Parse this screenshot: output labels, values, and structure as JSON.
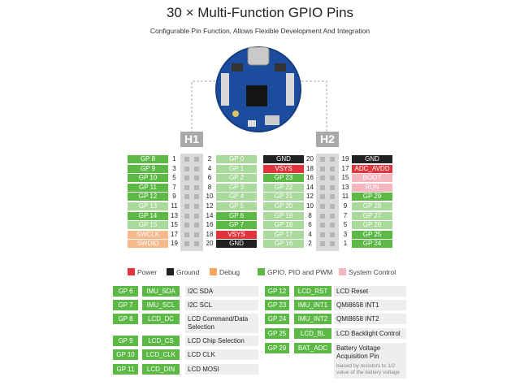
{
  "title": "30 × Multi-Function GPIO Pins",
  "subtitle": "Configurable Pin Function, Allows Flexible Development And Integration",
  "headers": [
    {
      "name": "H1",
      "rows": [
        [
          {
            "text": "GP 8",
            "color": "#5cb946"
          },
          1,
          2,
          {
            "text": "GP 0",
            "color": "#a9d99b"
          }
        ],
        [
          {
            "text": "GP 9",
            "color": "#5cb946"
          },
          3,
          4,
          {
            "text": "GP 1",
            "color": "#a9d99b"
          }
        ],
        [
          {
            "text": "GP 10",
            "color": "#5cb946"
          },
          5,
          6,
          {
            "text": "GP 2",
            "color": "#a9d99b"
          }
        ],
        [
          {
            "text": "GP 11",
            "color": "#5cb946"
          },
          7,
          8,
          {
            "text": "GP 3",
            "color": "#a9d99b"
          }
        ],
        [
          {
            "text": "GP 12",
            "color": "#5cb946"
          },
          9,
          10,
          {
            "text": "GP 4",
            "color": "#a9d99b"
          }
        ],
        [
          {
            "text": "GP 13",
            "color": "#a9d99b"
          },
          11,
          12,
          {
            "text": "GP 5",
            "color": "#a9d99b"
          }
        ],
        [
          {
            "text": "GP 14",
            "color": "#5cb946"
          },
          13,
          14,
          {
            "text": "GP 6",
            "color": "#5cb946"
          }
        ],
        [
          {
            "text": "GP 15",
            "color": "#a9d99b"
          },
          15,
          16,
          {
            "text": "GP 7",
            "color": "#5cb946"
          }
        ],
        [
          {
            "text": "SWCLK",
            "color": "#f7b98a"
          },
          17,
          18,
          {
            "text": "VSYS",
            "color": "#e2343c"
          }
        ],
        [
          {
            "text": "SWDIO",
            "color": "#f7b98a"
          },
          19,
          20,
          {
            "text": "GND",
            "color": "#222222"
          }
        ]
      ]
    },
    {
      "name": "H2",
      "rows": [
        [
          {
            "text": "GND",
            "color": "#222222"
          },
          20,
          19,
          {
            "text": "GND",
            "color": "#222222"
          }
        ],
        [
          {
            "text": "VSYS",
            "color": "#e2343c"
          },
          18,
          17,
          {
            "text": "ADC_AVDD",
            "color": "#e2343c"
          }
        ],
        [
          {
            "text": "GP 23",
            "color": "#5cb946"
          },
          16,
          15,
          {
            "text": "BOOT",
            "color": "#f4b6bf"
          }
        ],
        [
          {
            "text": "GP 22",
            "color": "#a9d99b"
          },
          14,
          13,
          {
            "text": "RUN",
            "color": "#f4b6bf"
          }
        ],
        [
          {
            "text": "GP 21",
            "color": "#a9d99b"
          },
          12,
          11,
          {
            "text": "GP 29",
            "color": "#5cb946"
          }
        ],
        [
          {
            "text": "GP 20",
            "color": "#a9d99b"
          },
          10,
          9,
          {
            "text": "GP 28",
            "color": "#a9d99b"
          }
        ],
        [
          {
            "text": "GP 19",
            "color": "#a9d99b"
          },
          8,
          7,
          {
            "text": "GP 27",
            "color": "#a9d99b"
          }
        ],
        [
          {
            "text": "GP 18",
            "color": "#a9d99b"
          },
          6,
          5,
          {
            "text": "GP 26",
            "color": "#a9d99b"
          }
        ],
        [
          {
            "text": "GP 17",
            "color": "#a9d99b"
          },
          4,
          3,
          {
            "text": "GP 25",
            "color": "#5cb946"
          }
        ],
        [
          {
            "text": "GP 16",
            "color": "#a9d99b"
          },
          2,
          1,
          {
            "text": "GP 24",
            "color": "#5cb946"
          }
        ]
      ]
    }
  ],
  "legend": [
    {
      "label": "Power",
      "color": "#e2343c"
    },
    {
      "label": "Ground",
      "color": "#222222"
    },
    {
      "label": "Debug",
      "color": "#f7a65e"
    },
    {
      "label": "GPIO, PIO and PWM",
      "color": "#5cb946"
    },
    {
      "label": "System Control",
      "color": "#f4b6bf"
    }
  ],
  "functions": [
    [
      {
        "pin": "GP 6",
        "signal": "IMU_SDA",
        "description": "I2C SDA"
      },
      {
        "pin": "GP 7",
        "signal": "IMU_SCL",
        "description": "I2C SCL"
      },
      {
        "pin": "GP 8",
        "signal": "LCD_DC",
        "description": "LCD Command/Data Selection"
      },
      {
        "pin": "GP 9",
        "signal": "LCD_CS",
        "description": "LCD Chip Selection"
      },
      {
        "pin": "GP 10",
        "signal": "LCD_CLK",
        "description": "LCD CLK"
      },
      {
        "pin": "GP 11",
        "signal": "LCD_DIN",
        "description": "LCD MOSI"
      }
    ],
    [
      {
        "pin": "GP 12",
        "signal": "LCD_RST",
        "description": "LCD Reset"
      },
      {
        "pin": "GP 23",
        "signal": "IMU_INT1",
        "description": "QMI8658 INT1"
      },
      {
        "pin": "GP 24",
        "signal": "IMU_INT2",
        "description": "QMI8658 INT2"
      },
      {
        "pin": "GP 25",
        "signal": "LCD_BL",
        "description": "LCD Backlight Control"
      },
      {
        "pin": "GP 29",
        "signal": "BAT_ADC",
        "description": "Battery Voltage Acquisition Pin",
        "note": "biased by resistors to 1/2 value of the battery voltage"
      }
    ]
  ]
}
